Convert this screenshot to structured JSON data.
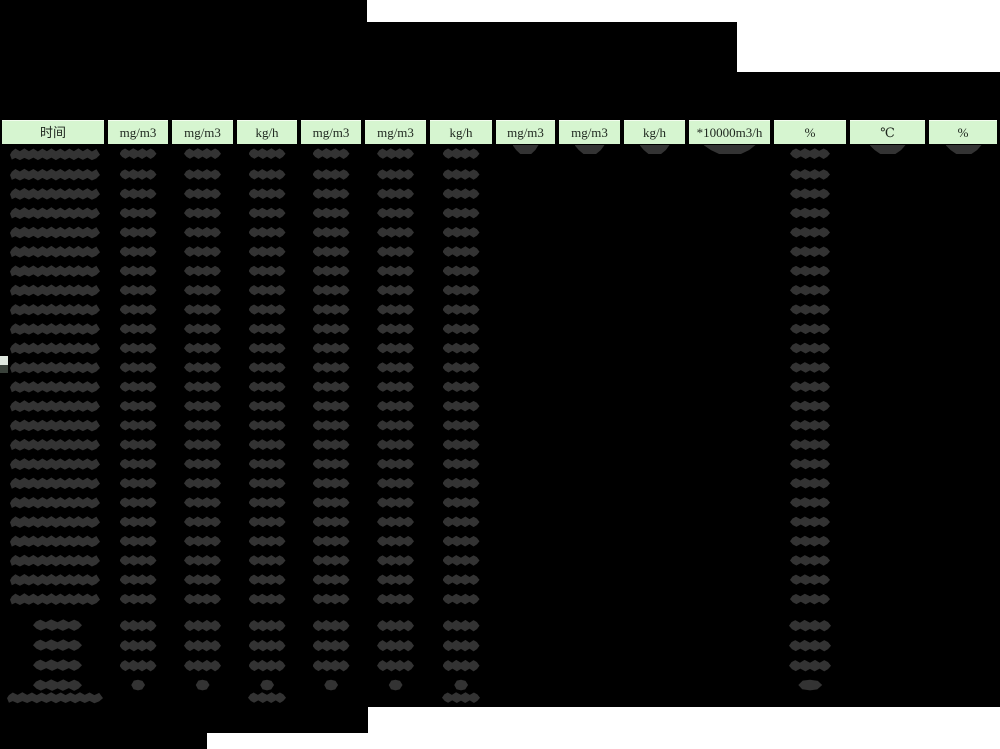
{
  "document": {
    "description": "Redacted hourly emissions monitoring report table (spreadsheet screenshot); title block and all cell values blacked out, only unit header row legible"
  },
  "colors": {
    "page_background": "#ffffff",
    "redaction_fill": "#000000",
    "header_cell_background": "#d6f5d0",
    "header_text_color": "#1e261e",
    "redacted_value_color": "#333333"
  },
  "table": {
    "header_columns": [
      {
        "label": "时间"
      },
      {
        "label": "mg/m3"
      },
      {
        "label": "mg/m3"
      },
      {
        "label": "kg/h"
      },
      {
        "label": "mg/m3"
      },
      {
        "label": "mg/m3"
      },
      {
        "label": "kg/h"
      },
      {
        "label": "mg/m3"
      },
      {
        "label": "mg/m3"
      },
      {
        "label": "kg/h"
      },
      {
        "label": "*10000m3/h"
      },
      {
        "label": "%"
      },
      {
        "label": "℃"
      },
      {
        "label": "%"
      }
    ],
    "redaction_structure": {
      "hourly_rows": 24,
      "hourly_value_column_indexes": [
        0,
        1,
        2,
        3,
        4,
        5,
        6,
        11
      ],
      "first_hourly_row_extra_column_indexes": [
        7,
        8,
        9,
        10,
        12,
        13
      ],
      "summary_rows": 4,
      "summary_value_column_indexes": [
        0,
        1,
        2,
        3,
        4,
        5,
        6,
        11
      ],
      "total_row_value_column_indexes": [
        0,
        3,
        6
      ]
    }
  }
}
